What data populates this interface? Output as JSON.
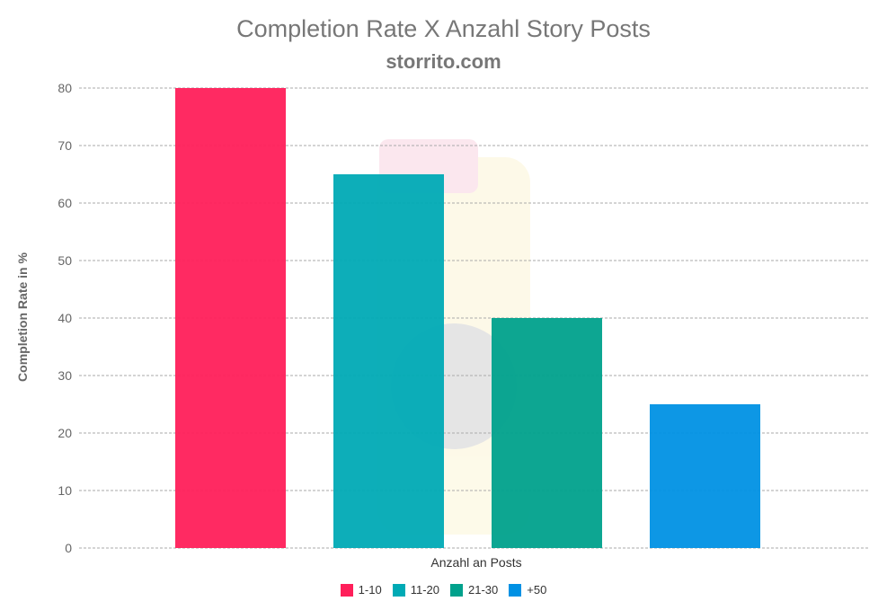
{
  "chart_data": {
    "type": "bar",
    "title": "Completion Rate X Anzahl Story Posts",
    "subtitle": "storrito.com",
    "xlabel": "Anzahl an Posts",
    "ylabel": "Completion Rate in %",
    "ylim": [
      0,
      80
    ],
    "yticks": [
      0,
      10,
      20,
      30,
      40,
      50,
      60,
      70,
      80
    ],
    "grid": true,
    "legend_position": "bottom",
    "series": [
      {
        "name": "1-10",
        "values": [
          80
        ],
        "color": "#ff1f5a"
      },
      {
        "name": "11-20",
        "values": [
          65
        ],
        "color": "#00aab5"
      },
      {
        "name": "21-30",
        "values": [
          40
        ],
        "color": "#00a18c"
      },
      {
        "name": "+50",
        "values": [
          25
        ],
        "color": "#0091e4"
      }
    ]
  }
}
